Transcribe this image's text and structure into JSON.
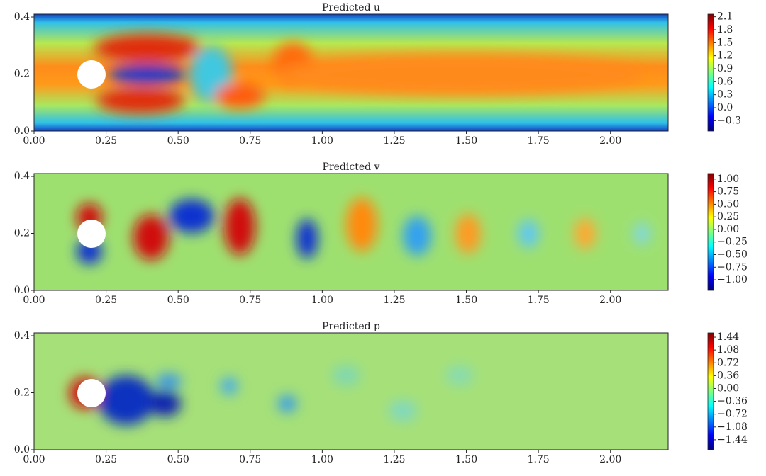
{
  "chart_data": [
    {
      "type": "heatmap",
      "title": "Predicted u",
      "xlim": [
        0,
        2.2
      ],
      "ylim": [
        0,
        0.41
      ],
      "xticks": [
        {
          "value": 0,
          "label": "0.00"
        },
        0.25,
        {
          "value": 0.5,
          "label": "0.50"
        },
        0.75,
        {
          "value": 1,
          "label": "1.00"
        },
        1.25,
        {
          "value": 1.5,
          "label": "1.50"
        },
        1.75,
        {
          "value": 2,
          "label": "2.00"
        }
      ],
      "yticks": [
        {
          "value": 0,
          "label": "0.0"
        },
        0.2,
        0.4
      ],
      "clim": [
        -0.54,
        2.16
      ],
      "cticks": [
        2.1,
        1.8,
        1.5,
        1.2,
        0.9,
        0.6,
        0.3,
        {
          "value": 0,
          "label": "0.0"
        },
        {
          "value": -0.3,
          "label": "−0.3"
        }
      ]
    },
    {
      "type": "heatmap",
      "title": "Predicted v",
      "xlim": [
        0,
        2.2
      ],
      "ylim": [
        0,
        0.41
      ],
      "xticks": [
        {
          "value": 0,
          "label": "0.00"
        },
        0.25,
        {
          "value": 0.5,
          "label": "0.50"
        },
        0.75,
        {
          "value": 1,
          "label": "1.00"
        },
        1.25,
        {
          "value": 1.5,
          "label": "1.50"
        },
        1.75,
        {
          "value": 2,
          "label": "2.00"
        }
      ],
      "yticks": [
        {
          "value": 0,
          "label": "0.0"
        },
        0.2,
        0.4
      ],
      "clim": [
        -1.21,
        1.11
      ],
      "cticks": [
        {
          "value": 1,
          "label": "1.00"
        },
        0.75,
        {
          "value": 0.5,
          "label": "0.50"
        },
        0.25,
        {
          "value": 0,
          "label": "0.00"
        },
        {
          "value": -0.25,
          "label": "−0.25"
        },
        {
          "value": -0.5,
          "label": "−0.50"
        },
        {
          "value": -0.75,
          "label": "−0.75"
        },
        {
          "value": -1,
          "label": "−1.00"
        }
      ]
    },
    {
      "type": "heatmap",
      "title": "Predicted p",
      "xlim": [
        0,
        2.2
      ],
      "ylim": [
        0,
        0.41
      ],
      "xticks": [
        {
          "value": 0,
          "label": "0.00"
        },
        0.25,
        {
          "value": 0.5,
          "label": "0.50"
        },
        0.75,
        {
          "value": 1,
          "label": "1.00"
        },
        1.25,
        {
          "value": 1.5,
          "label": "1.50"
        },
        1.75,
        {
          "value": 2,
          "label": "2.00"
        }
      ],
      "yticks": [
        {
          "value": 0,
          "label": "0.0"
        },
        0.2,
        0.4
      ],
      "clim": [
        -1.72,
        1.56
      ],
      "cticks": [
        1.44,
        1.08,
        0.72,
        0.36,
        {
          "value": 0,
          "label": "0.00"
        },
        {
          "value": -0.36,
          "label": "−0.36"
        },
        {
          "value": -0.72,
          "label": "−0.72"
        },
        {
          "value": -1.08,
          "label": "−1.08"
        },
        {
          "value": -1.44,
          "label": "−1.44"
        }
      ]
    }
  ]
}
